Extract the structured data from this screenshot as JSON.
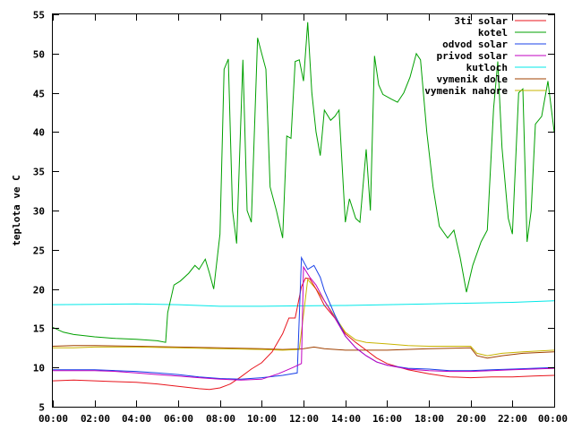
{
  "chart_data": {
    "type": "line",
    "ylabel": "teplota ve C",
    "xlabel": "",
    "title": "",
    "ylim": [
      5,
      55
    ],
    "xlim": [
      0,
      24
    ],
    "y_ticks": [
      "5",
      "10",
      "15",
      "20",
      "25",
      "30",
      "35",
      "40",
      "45",
      "50",
      "55"
    ],
    "x_ticks": [
      "00:00",
      "02:00",
      "04:00",
      "06:00",
      "08:00",
      "10:00",
      "12:00",
      "14:00",
      "16:00",
      "18:00",
      "20:00",
      "22:00",
      "00:00"
    ],
    "grid": false,
    "legend_position": "top-right",
    "series": [
      {
        "name": "3ti solar",
        "color": "#e8141c",
        "points": [
          [
            0,
            8.3
          ],
          [
            1,
            8.4
          ],
          [
            2,
            8.3
          ],
          [
            3,
            8.2
          ],
          [
            4,
            8.1
          ],
          [
            5,
            7.9
          ],
          [
            6,
            7.6
          ],
          [
            7,
            7.3
          ],
          [
            7.5,
            7.2
          ],
          [
            8,
            7.4
          ],
          [
            8.5,
            7.9
          ],
          [
            9,
            8.8
          ],
          [
            9.5,
            9.8
          ],
          [
            10,
            10.6
          ],
          [
            10.5,
            12
          ],
          [
            11,
            14.3
          ],
          [
            11.3,
            16.3
          ],
          [
            11.6,
            16.3
          ],
          [
            11.9,
            20.3
          ],
          [
            12.1,
            21.4
          ],
          [
            12.3,
            21.3
          ],
          [
            12.6,
            20
          ],
          [
            13,
            17.9
          ],
          [
            13.5,
            16.3
          ],
          [
            14,
            14.3
          ],
          [
            14.5,
            13.2
          ],
          [
            15,
            12.2
          ],
          [
            15.5,
            11.2
          ],
          [
            16,
            10.5
          ],
          [
            17,
            9.7
          ],
          [
            18,
            9.2
          ],
          [
            19,
            8.8
          ],
          [
            20,
            8.7
          ],
          [
            21,
            8.8
          ],
          [
            22,
            8.8
          ],
          [
            23,
            8.9
          ],
          [
            24,
            9.0
          ]
        ]
      },
      {
        "name": "kotel",
        "color": "#00a000",
        "points": [
          [
            0,
            15.1
          ],
          [
            0.5,
            14.5
          ],
          [
            1,
            14.2
          ],
          [
            2,
            13.9
          ],
          [
            3,
            13.7
          ],
          [
            4,
            13.6
          ],
          [
            5,
            13.4
          ],
          [
            5.4,
            13.2
          ],
          [
            5.5,
            17
          ],
          [
            5.8,
            20.5
          ],
          [
            6.1,
            21
          ],
          [
            6.5,
            22
          ],
          [
            6.8,
            23
          ],
          [
            7,
            22.5
          ],
          [
            7.3,
            23.8
          ],
          [
            7.5,
            22
          ],
          [
            7.7,
            20
          ],
          [
            8,
            27
          ],
          [
            8.2,
            48
          ],
          [
            8.4,
            49.3
          ],
          [
            8.6,
            30
          ],
          [
            8.8,
            25.8
          ],
          [
            9.1,
            49.2
          ],
          [
            9.3,
            30
          ],
          [
            9.5,
            28.5
          ],
          [
            9.8,
            52
          ],
          [
            10,
            50
          ],
          [
            10.2,
            48
          ],
          [
            10.4,
            33
          ],
          [
            10.7,
            30
          ],
          [
            11,
            26.5
          ],
          [
            11.2,
            39.5
          ],
          [
            11.4,
            39.2
          ],
          [
            11.6,
            49
          ],
          [
            11.8,
            49.2
          ],
          [
            12.0,
            46.5
          ],
          [
            12.2,
            54
          ],
          [
            12.4,
            45
          ],
          [
            12.6,
            40
          ],
          [
            12.8,
            37
          ],
          [
            13,
            42.8
          ],
          [
            13.3,
            41.5
          ],
          [
            13.5,
            42
          ],
          [
            13.7,
            42.8
          ],
          [
            14,
            28.5
          ],
          [
            14.2,
            31.5
          ],
          [
            14.5,
            29
          ],
          [
            14.7,
            28.5
          ],
          [
            15,
            37.8
          ],
          [
            15.2,
            30
          ],
          [
            15.4,
            49.7
          ],
          [
            15.6,
            46
          ],
          [
            15.8,
            44.8
          ],
          [
            16.2,
            44.2
          ],
          [
            16.5,
            43.8
          ],
          [
            16.8,
            45
          ],
          [
            17.1,
            47
          ],
          [
            17.4,
            50
          ],
          [
            17.6,
            49.2
          ],
          [
            17.9,
            40
          ],
          [
            18.2,
            33
          ],
          [
            18.5,
            28
          ],
          [
            18.9,
            26.5
          ],
          [
            19.2,
            27.5
          ],
          [
            19.5,
            24
          ],
          [
            19.8,
            19.6
          ],
          [
            20.1,
            23
          ],
          [
            20.5,
            26
          ],
          [
            20.8,
            27.5
          ],
          [
            21.1,
            43
          ],
          [
            21.3,
            49
          ],
          [
            21.5,
            38
          ],
          [
            21.8,
            29
          ],
          [
            22,
            27
          ],
          [
            22.3,
            45
          ],
          [
            22.5,
            45.5
          ],
          [
            22.7,
            26
          ],
          [
            22.9,
            30
          ],
          [
            23.1,
            41
          ],
          [
            23.4,
            42
          ],
          [
            23.7,
            46.5
          ],
          [
            24,
            40
          ]
        ]
      },
      {
        "name": "odvod solar",
        "color": "#1a42e8",
        "points": [
          [
            0,
            9.7
          ],
          [
            1,
            9.7
          ],
          [
            2,
            9.7
          ],
          [
            3,
            9.6
          ],
          [
            4,
            9.5
          ],
          [
            5,
            9.3
          ],
          [
            6,
            9.1
          ],
          [
            7,
            8.8
          ],
          [
            8,
            8.6
          ],
          [
            9,
            8.5
          ],
          [
            10,
            8.7
          ],
          [
            11,
            9
          ],
          [
            11.7,
            9.3
          ],
          [
            11.9,
            24
          ],
          [
            12.2,
            22.5
          ],
          [
            12.5,
            23
          ],
          [
            12.8,
            21.5
          ],
          [
            13,
            19.8
          ],
          [
            13.5,
            16.7
          ],
          [
            14,
            14
          ],
          [
            14.5,
            12.5
          ],
          [
            15,
            11.5
          ],
          [
            15.5,
            10.7
          ],
          [
            16,
            10.3
          ],
          [
            17,
            9.9
          ],
          [
            18,
            9.8
          ],
          [
            19,
            9.6
          ],
          [
            20,
            9.6
          ],
          [
            21,
            9.7
          ],
          [
            22,
            9.8
          ],
          [
            23,
            9.9
          ],
          [
            24,
            10
          ]
        ]
      },
      {
        "name": "privod solar",
        "color": "#c000c0",
        "points": [
          [
            0,
            9.6
          ],
          [
            1,
            9.6
          ],
          [
            2,
            9.6
          ],
          [
            3,
            9.5
          ],
          [
            4,
            9.3
          ],
          [
            5,
            9.1
          ],
          [
            6,
            8.9
          ],
          [
            7,
            8.7
          ],
          [
            8,
            8.5
          ],
          [
            9,
            8.4
          ],
          [
            10,
            8.5
          ],
          [
            10.8,
            9.2
          ],
          [
            11.5,
            10
          ],
          [
            11.9,
            10.5
          ],
          [
            12.0,
            22.8
          ],
          [
            12.3,
            21.5
          ],
          [
            12.6,
            20.5
          ],
          [
            13,
            18.5
          ],
          [
            13.5,
            16.3
          ],
          [
            14,
            14
          ],
          [
            14.5,
            12.5
          ],
          [
            15,
            11.5
          ],
          [
            15.5,
            10.7
          ],
          [
            16,
            10.3
          ],
          [
            17,
            9.8
          ],
          [
            18,
            9.6
          ],
          [
            19,
            9.5
          ],
          [
            20,
            9.5
          ],
          [
            21,
            9.6
          ],
          [
            22,
            9.7
          ],
          [
            23,
            9.8
          ],
          [
            24,
            9.9
          ]
        ]
      },
      {
        "name": "kutloch",
        "color": "#00e8e8",
        "points": [
          [
            0,
            18
          ],
          [
            2,
            18.05
          ],
          [
            4,
            18.1
          ],
          [
            6,
            18
          ],
          [
            8,
            17.8
          ],
          [
            10,
            17.8
          ],
          [
            12,
            17.85
          ],
          [
            14,
            17.9
          ],
          [
            16,
            18
          ],
          [
            18,
            18.1
          ],
          [
            20,
            18.2
          ],
          [
            22,
            18.3
          ],
          [
            24,
            18.5
          ]
        ]
      },
      {
        "name": "vymenik dole",
        "color": "#a04000",
        "points": [
          [
            0,
            12.7
          ],
          [
            1,
            12.8
          ],
          [
            2,
            12.8
          ],
          [
            4,
            12.7
          ],
          [
            6,
            12.6
          ],
          [
            8,
            12.5
          ],
          [
            10,
            12.4
          ],
          [
            11,
            12.3
          ],
          [
            12,
            12.4
          ],
          [
            12.5,
            12.6
          ],
          [
            13,
            12.4
          ],
          [
            14,
            12.2
          ],
          [
            16,
            12.2
          ],
          [
            18,
            12.4
          ],
          [
            20,
            12.5
          ],
          [
            20.3,
            11.5
          ],
          [
            20.8,
            11.2
          ],
          [
            21.5,
            11.5
          ],
          [
            22.5,
            11.8
          ],
          [
            24,
            12
          ]
        ]
      },
      {
        "name": "vymenik nahore",
        "color": "#c8b400",
        "points": [
          [
            0,
            12.5
          ],
          [
            1,
            12.5
          ],
          [
            2,
            12.6
          ],
          [
            4,
            12.6
          ],
          [
            6,
            12.5
          ],
          [
            8,
            12.4
          ],
          [
            10,
            12.3
          ],
          [
            11,
            12.2
          ],
          [
            11.8,
            12.3
          ],
          [
            12.2,
            21.2
          ],
          [
            12.6,
            20
          ],
          [
            13,
            18.5
          ],
          [
            13.5,
            16.5
          ],
          [
            14,
            14.5
          ],
          [
            14.5,
            13.5
          ],
          [
            15,
            13.2
          ],
          [
            16,
            13
          ],
          [
            17,
            12.8
          ],
          [
            18,
            12.7
          ],
          [
            19,
            12.7
          ],
          [
            20,
            12.7
          ],
          [
            20.3,
            11.8
          ],
          [
            20.8,
            11.5
          ],
          [
            21.5,
            11.8
          ],
          [
            22.5,
            12
          ],
          [
            24,
            12.2
          ]
        ]
      }
    ]
  }
}
